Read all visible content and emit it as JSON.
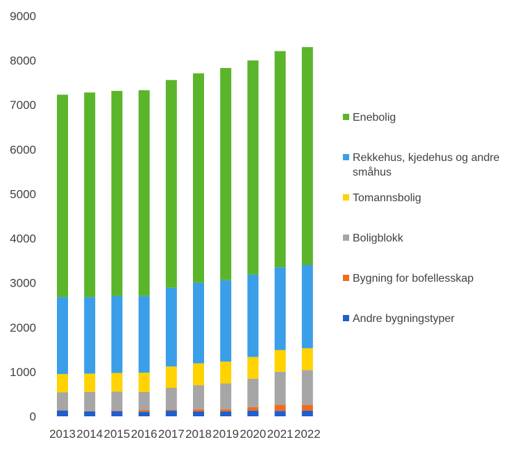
{
  "chart_data": {
    "type": "bar",
    "stacked": true,
    "title": "",
    "xlabel": "",
    "ylabel": "",
    "ylim": [
      0,
      9000
    ],
    "yticks": [
      0,
      1000,
      2000,
      3000,
      4000,
      5000,
      6000,
      7000,
      8000,
      9000
    ],
    "ytick_labels": [
      "0",
      "1000",
      "2000",
      "3000",
      "4000",
      "5000",
      "6000",
      "7000",
      "8000",
      "9000"
    ],
    "grid": false,
    "legend_position": "right",
    "categories": [
      "2013",
      "2014",
      "2015",
      "2016",
      "2017",
      "2018",
      "2019",
      "2020",
      "2021",
      "2022"
    ],
    "series": [
      {
        "name": "Andre bygningstyper",
        "color": "#1f5fcf",
        "values": [
          130,
          110,
          115,
          100,
          130,
          110,
          110,
          125,
          120,
          125
        ]
      },
      {
        "name": "Bygning for bofellesskap",
        "color": "#ed6d1f",
        "values": [
          10,
          10,
          10,
          40,
          20,
          50,
          50,
          80,
          140,
          135
        ]
      },
      {
        "name": "Boligblokk",
        "color": "#a6a6a6",
        "values": [
          400,
          430,
          430,
          410,
          490,
          540,
          580,
          640,
          740,
          780
        ]
      },
      {
        "name": "Tomannsbolig",
        "color": "#ffd200",
        "values": [
          410,
          410,
          420,
          430,
          480,
          490,
          490,
          490,
          490,
          490
        ]
      },
      {
        "name": "Rekkehus, kjedehus og andre småhus",
        "color": "#3a9ee8",
        "values": [
          1730,
          1720,
          1730,
          1730,
          1770,
          1810,
          1830,
          1850,
          1860,
          1870
        ]
      },
      {
        "name": "Enebolig",
        "color": "#5ab52b",
        "values": [
          4550,
          4600,
          4610,
          4620,
          4670,
          4710,
          4770,
          4815,
          4860,
          4900
        ]
      }
    ]
  },
  "legend": {
    "order": [
      5,
      4,
      3,
      2,
      1,
      0
    ],
    "entries": [
      {
        "lines": [
          "Enebolig"
        ],
        "color": "#5ab52b"
      },
      {
        "lines": [
          "Rekkehus, kjedehus og andre",
          "småhus"
        ],
        "color": "#3a9ee8"
      },
      {
        "lines": [
          "Tomannsbolig"
        ],
        "color": "#ffd200"
      },
      {
        "lines": [
          "Boligblokk"
        ],
        "color": "#a6a6a6"
      },
      {
        "lines": [
          "Bygning for bofellesskap"
        ],
        "color": "#ed6d1f"
      },
      {
        "lines": [
          "Andre bygningstyper"
        ],
        "color": "#1f5fcf"
      }
    ]
  }
}
